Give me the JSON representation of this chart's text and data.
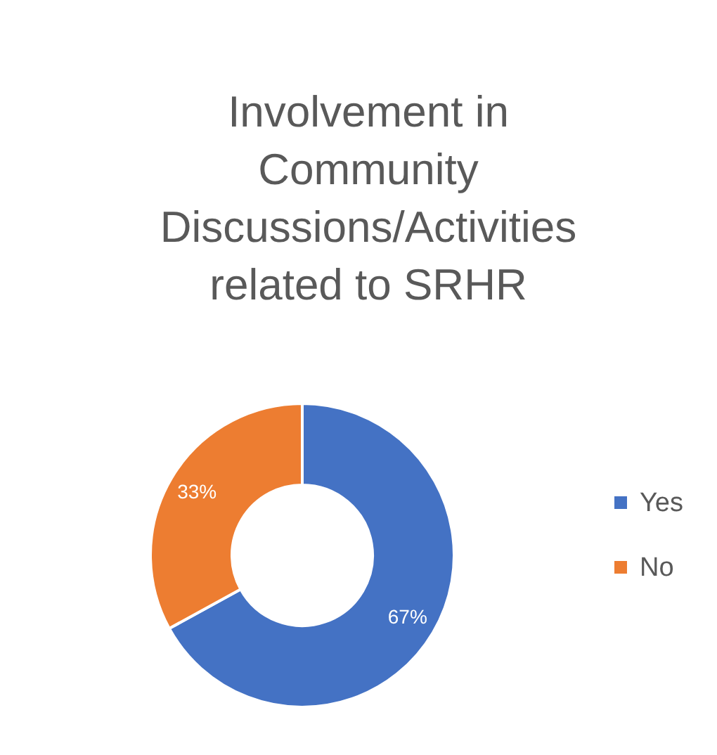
{
  "chart_data": {
    "type": "donut",
    "title": "Involvement in Community Discussions/Activities related to SRHR",
    "categories": [
      "Yes",
      "No"
    ],
    "values": [
      67,
      33
    ],
    "colors": [
      "#4472c4",
      "#ed7d31"
    ],
    "value_labels": [
      "67%",
      "33%"
    ],
    "legend": "right"
  }
}
